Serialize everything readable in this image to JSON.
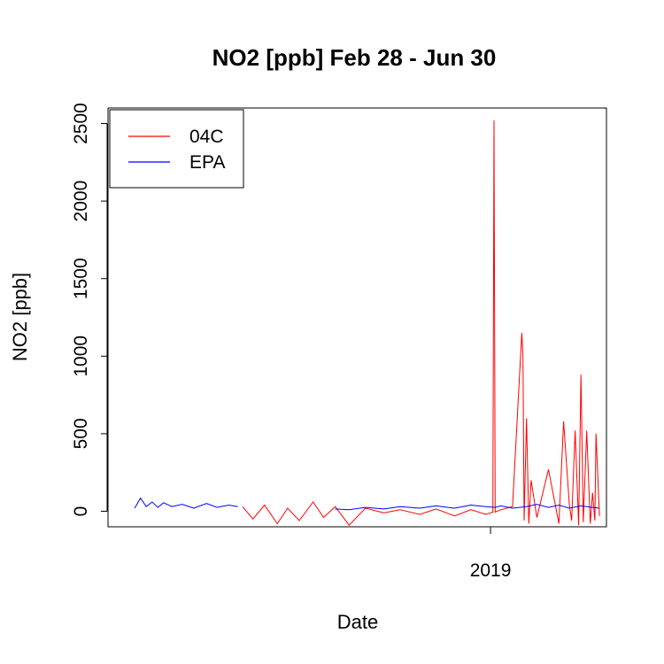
{
  "chart_data": {
    "type": "line",
    "title": "NO2 [ppb] Feb 28 - Jun 30",
    "xlabel": "Date",
    "ylabel": "NO2 [ppb]",
    "ylim": [
      -100,
      2600
    ],
    "yticks": [
      0,
      500,
      1000,
      1500,
      2000,
      2500
    ],
    "xticks": [
      {
        "date": "2019-01-01",
        "label": "2019"
      }
    ],
    "xlim": [
      "2018-02-05",
      "2019-04-11"
    ],
    "grid": false,
    "legend": {
      "position": "top-left",
      "entries": [
        "04C",
        "EPA"
      ]
    },
    "series": [
      {
        "name": "04C",
        "color": "#ff0000",
        "x": [
          "2018-06-01",
          "2018-06-10",
          "2018-06-20",
          "2018-07-01",
          "2018-07-10",
          "2018-07-20",
          "2018-08-01",
          "2018-08-10",
          "2018-08-20",
          "2018-09-01",
          "2018-09-15",
          "2018-10-01",
          "2018-10-15",
          "2018-11-01",
          "2018-11-15",
          "2018-12-01",
          "2018-12-15",
          "2018-12-28",
          "2019-01-03",
          "2019-01-04",
          "2019-01-05",
          "2019-01-10",
          "2019-01-20",
          "2019-01-28",
          "2019-01-29",
          "2019-01-30",
          "2019-02-01",
          "2019-02-03",
          "2019-02-05",
          "2019-02-10",
          "2019-02-20",
          "2019-03-01",
          "2019-03-05",
          "2019-03-10",
          "2019-03-12",
          "2019-03-15",
          "2019-03-18",
          "2019-03-20",
          "2019-03-22",
          "2019-03-25",
          "2019-03-28",
          "2019-03-30",
          "2019-04-01",
          "2019-04-02",
          "2019-04-05"
        ],
        "y": [
          30,
          -50,
          40,
          -80,
          20,
          -60,
          60,
          -40,
          30,
          -90,
          20,
          -10,
          10,
          -20,
          15,
          -30,
          10,
          -20,
          -5,
          2520,
          -5,
          10,
          30,
          1150,
          1000,
          -60,
          600,
          -80,
          200,
          -40,
          270,
          -80,
          580,
          40,
          -60,
          520,
          -90,
          880,
          -70,
          520,
          -80,
          120,
          -60,
          500,
          -30
        ]
      },
      {
        "name": "EPA",
        "color": "#0000ff",
        "x": [
          "2018-02-28",
          "2018-03-05",
          "2018-03-10",
          "2018-03-15",
          "2018-03-20",
          "2018-03-25",
          "2018-04-01",
          "2018-04-10",
          "2018-04-20",
          "2018-05-01",
          "2018-05-10",
          "2018-05-20",
          "2018-05-28",
          "2018-06-01",
          "2018-07-01",
          "2018-08-01",
          "2018-08-20",
          "2018-09-01",
          "2018-09-15",
          "2018-10-01",
          "2018-10-15",
          "2018-11-01",
          "2018-11-15",
          "2018-12-01",
          "2018-12-15",
          "2018-12-28",
          "2019-01-05",
          "2019-01-10",
          "2019-01-20",
          "2019-02-01",
          "2019-02-10",
          "2019-02-20",
          "2019-03-01",
          "2019-03-10",
          "2019-03-20",
          "2019-03-30",
          "2019-04-05"
        ],
        "y": [
          20,
          85,
          30,
          60,
          25,
          55,
          30,
          45,
          20,
          50,
          25,
          40,
          30,
          null,
          null,
          null,
          15,
          10,
          25,
          15,
          30,
          20,
          35,
          20,
          40,
          30,
          25,
          35,
          20,
          30,
          45,
          25,
          40,
          20,
          35,
          25,
          20
        ]
      }
    ]
  }
}
